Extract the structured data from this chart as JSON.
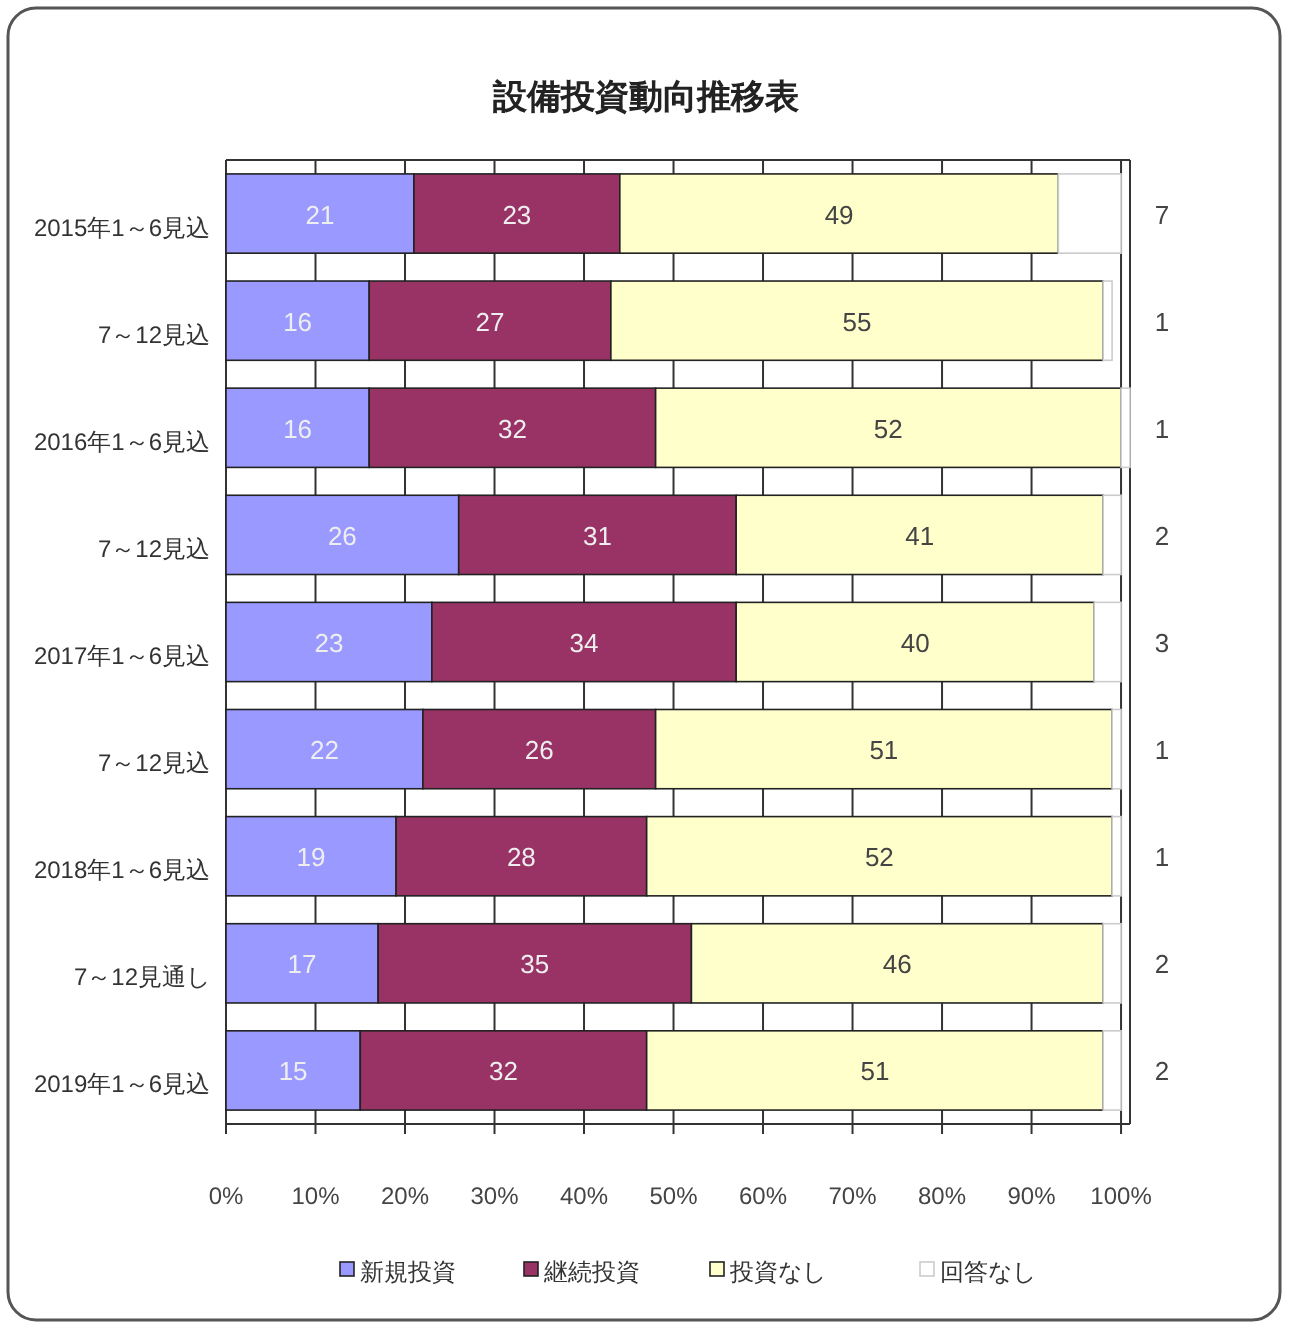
{
  "chart_data": {
    "type": "bar",
    "orientation": "horizontal",
    "stacked": true,
    "title": "設備投資動向推移表",
    "categories": [
      "2015年1～6見込",
      "7～12見込",
      "2016年1～6見込",
      "7～12見込",
      "2017年1～6見込",
      "7～12見込",
      "2018年1～6見込",
      "7～12見通し",
      "2019年1～6見込"
    ],
    "series": [
      {
        "name": "新規投資",
        "color": "#9999ff",
        "values": [
          21,
          16,
          16,
          26,
          23,
          22,
          19,
          17,
          15
        ]
      },
      {
        "name": "継続投資",
        "color": "#993366",
        "values": [
          23,
          27,
          32,
          31,
          34,
          26,
          28,
          35,
          32
        ]
      },
      {
        "name": "投資なし",
        "color": "#ffffcc",
        "values": [
          49,
          55,
          52,
          41,
          40,
          51,
          52,
          46,
          51
        ]
      },
      {
        "name": "回答なし",
        "color": "#ffffff",
        "values": [
          7,
          1,
          1,
          2,
          3,
          1,
          1,
          2,
          2
        ]
      }
    ],
    "xlim": [
      0,
      101
    ],
    "xticks": [
      {
        "value": 0,
        "label": "0%"
      },
      {
        "value": 10,
        "label": "10%"
      },
      {
        "value": 20,
        "label": "20%"
      },
      {
        "value": 30,
        "label": "30%"
      },
      {
        "value": 40,
        "label": "40%"
      },
      {
        "value": 50,
        "label": "50%"
      },
      {
        "value": 60,
        "label": "60%"
      },
      {
        "value": 70,
        "label": "70%"
      },
      {
        "value": 80,
        "label": "80%"
      },
      {
        "value": 90,
        "label": "90%"
      },
      {
        "value": 100,
        "label": "100%"
      }
    ],
    "grid": "x",
    "legend": "bottom",
    "data_labels": true
  }
}
